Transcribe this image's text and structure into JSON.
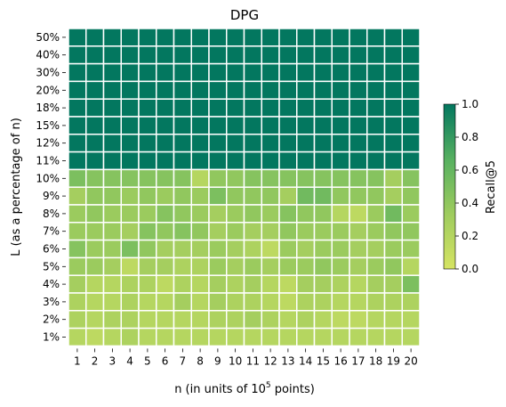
{
  "chart_data": {
    "type": "heatmap",
    "title": "DPG",
    "xlabel": "n (in units of 10",
    "xlabel_sup": "5",
    "xlabel_tail": " points)",
    "ylabel": "L (as a percentage of n)",
    "x": [
      "1",
      "2",
      "3",
      "4",
      "5",
      "6",
      "7",
      "8",
      "9",
      "10",
      "11",
      "12",
      "13",
      "14",
      "15",
      "16",
      "17",
      "18",
      "19",
      "20"
    ],
    "y": [
      "50%",
      "40%",
      "30%",
      "20%",
      "18%",
      "15%",
      "12%",
      "11%",
      "10%",
      "9%",
      "8%",
      "7%",
      "6%",
      "5%",
      "4%",
      "3%",
      "2%",
      "1%"
    ],
    "values": [
      [
        1,
        1,
        1,
        1,
        1,
        1,
        1,
        1,
        1,
        1,
        1,
        1,
        1,
        1,
        1,
        1,
        1,
        1,
        1,
        1
      ],
      [
        1,
        1,
        1,
        1,
        1,
        1,
        1,
        1,
        1,
        1,
        1,
        1,
        1,
        1,
        1,
        1,
        1,
        1,
        1,
        1
      ],
      [
        1,
        1,
        1,
        1,
        1,
        1,
        1,
        1,
        1,
        1,
        1,
        1,
        1,
        1,
        1,
        1,
        1,
        1,
        1,
        1
      ],
      [
        1,
        1,
        1,
        1,
        1,
        1,
        1,
        1,
        1,
        1,
        1,
        1,
        1,
        1,
        1,
        1,
        1,
        1,
        1,
        1
      ],
      [
        1,
        1,
        1,
        1,
        1,
        1,
        1,
        1,
        1,
        1,
        1,
        1,
        1,
        1,
        1,
        1,
        1,
        1,
        1,
        1
      ],
      [
        1,
        1,
        1,
        1,
        1,
        1,
        1,
        1,
        1,
        1,
        1,
        1,
        1,
        1,
        1,
        1,
        1,
        1,
        1,
        1
      ],
      [
        1,
        1,
        1,
        1,
        1,
        1,
        1,
        1,
        1,
        1,
        1,
        1,
        1,
        1,
        1,
        1,
        1,
        1,
        1,
        1
      ],
      [
        1,
        1,
        1,
        1,
        1,
        1,
        1,
        1,
        1,
        1,
        1,
        1,
        1,
        1,
        1,
        1,
        1,
        1,
        1,
        1
      ],
      [
        0.5,
        0.45,
        0.45,
        0.45,
        0.45,
        0.45,
        0.45,
        0.2,
        0.4,
        0.4,
        0.45,
        0.45,
        0.45,
        0.45,
        0.45,
        0.45,
        0.45,
        0.45,
        0.3,
        0.45
      ],
      [
        0.3,
        0.4,
        0.4,
        0.35,
        0.4,
        0.35,
        0.4,
        0.35,
        0.5,
        0.4,
        0.4,
        0.4,
        0.3,
        0.55,
        0.55,
        0.4,
        0.4,
        0.4,
        0.3,
        0.4
      ],
      [
        0.35,
        0.4,
        0.35,
        0.35,
        0.35,
        0.45,
        0.4,
        0.35,
        0.3,
        0.35,
        0.4,
        0.35,
        0.45,
        0.4,
        0.4,
        0.2,
        0.15,
        0.35,
        0.55,
        0.35
      ],
      [
        0.35,
        0.35,
        0.35,
        0.3,
        0.45,
        0.4,
        0.45,
        0.4,
        0.3,
        0.35,
        0.3,
        0.3,
        0.4,
        0.35,
        0.35,
        0.35,
        0.3,
        0.35,
        0.4,
        0.4
      ],
      [
        0.45,
        0.35,
        0.35,
        0.5,
        0.4,
        0.3,
        0.3,
        0.3,
        0.35,
        0.3,
        0.25,
        0.15,
        0.35,
        0.3,
        0.35,
        0.35,
        0.3,
        0.3,
        0.35,
        0.35
      ],
      [
        0.35,
        0.35,
        0.3,
        0.15,
        0.3,
        0.3,
        0.25,
        0.25,
        0.35,
        0.3,
        0.35,
        0.3,
        0.35,
        0.35,
        0.4,
        0.35,
        0.3,
        0.35,
        0.4,
        0.2
      ],
      [
        0.3,
        0.2,
        0.2,
        0.25,
        0.25,
        0.15,
        0.25,
        0.2,
        0.3,
        0.25,
        0.3,
        0.2,
        0.15,
        0.3,
        0.3,
        0.25,
        0.2,
        0.3,
        0.3,
        0.5
      ],
      [
        0.25,
        0.2,
        0.2,
        0.25,
        0.2,
        0.2,
        0.3,
        0.2,
        0.3,
        0.25,
        0.25,
        0.2,
        0.15,
        0.25,
        0.25,
        0.2,
        0.2,
        0.25,
        0.25,
        0.25
      ],
      [
        0.25,
        0.2,
        0.25,
        0.25,
        0.2,
        0.2,
        0.2,
        0.2,
        0.25,
        0.25,
        0.3,
        0.25,
        0.2,
        0.25,
        0.2,
        0.15,
        0.15,
        0.2,
        0.2,
        0.2
      ],
      [
        0.2,
        0.15,
        0.2,
        0.25,
        0.2,
        0.2,
        0.2,
        0.2,
        0.2,
        0.2,
        0.2,
        0.2,
        0.2,
        0.2,
        0.2,
        0.2,
        0.2,
        0.2,
        0.2,
        0.2
      ]
    ],
    "colorbar": {
      "label": "Recall@5",
      "range": [
        0,
        1
      ],
      "ticks": [
        "0.0",
        "0.2",
        "0.4",
        "0.6",
        "0.8",
        "1.0"
      ],
      "colors": [
        "#d6e463",
        "#9fcc5e",
        "#58b160",
        "#03775f"
      ]
    },
    "grid_lines": "white"
  }
}
